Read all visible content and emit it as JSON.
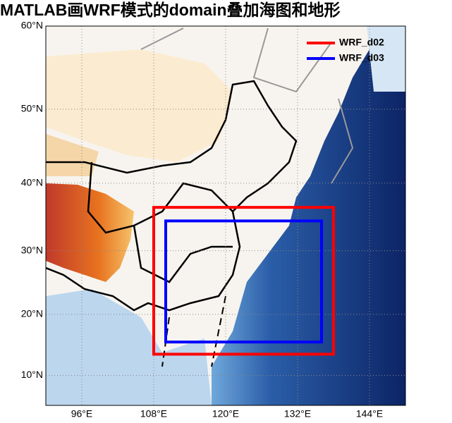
{
  "chart_data": {
    "type": "map",
    "title": "MATLAB画WRF模式的domain叠加海图和地形",
    "xlim": [
      90,
      150
    ],
    "ylim": [
      5,
      60
    ],
    "xticks": [
      {
        "value": 96,
        "label": "96°E"
      },
      {
        "value": 108,
        "label": "108°E"
      },
      {
        "value": 120,
        "label": "120°E"
      },
      {
        "value": 132,
        "label": "132°E"
      },
      {
        "value": 144,
        "label": "144°E"
      }
    ],
    "yticks": [
      {
        "value": 10,
        "label": "10°N"
      },
      {
        "value": 20,
        "label": "20°N"
      },
      {
        "value": 30,
        "label": "30°N"
      },
      {
        "value": 40,
        "label": "40°N"
      },
      {
        "value": 50,
        "label": "50°N"
      },
      {
        "value": 60,
        "label": "60°N"
      }
    ],
    "projection": "miller",
    "grid": true,
    "legend": "northeast",
    "series": [
      {
        "name": "WRF_d02",
        "color": "#ff0000",
        "lon": [
          108,
          138
        ],
        "lat": [
          13.5,
          36.5
        ]
      },
      {
        "name": "WRF_d03",
        "color": "#0000ff",
        "lon": [
          110,
          136
        ],
        "lat": [
          15.5,
          34.5
        ]
      }
    ]
  }
}
